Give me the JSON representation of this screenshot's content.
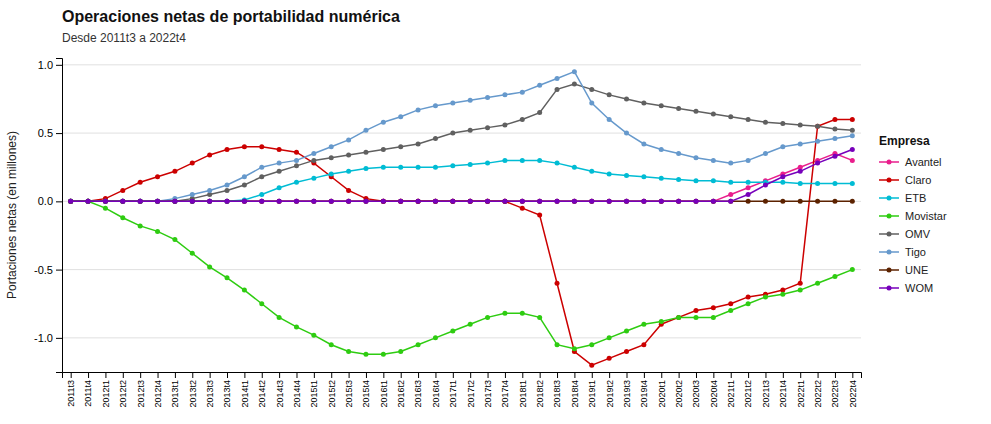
{
  "chart_data": {
    "type": "line",
    "title": "Operaciones netas de portabilidad numérica",
    "subtitle": "Desde 2011t3 a 2022t4",
    "y_label": "Portaciones netas (en millones)",
    "legend_title": "Empresa",
    "legend": "right",
    "grid": true,
    "marker": "circle",
    "ylim": [
      -1.25,
      1.05
    ],
    "yticks": [
      {
        "value": -1.0,
        "label": "-1.0"
      },
      {
        "value": -0.5,
        "label": "-0.5"
      },
      {
        "value": 0.0,
        "label": "0.0"
      },
      {
        "value": 0.5,
        "label": "0.5"
      },
      {
        "value": 1.0,
        "label": "1.0"
      }
    ],
    "categories": [
      "2011t3",
      "2011t4",
      "2012t1",
      "2012t2",
      "2012t3",
      "2012t4",
      "2013t1",
      "2013t2",
      "2013t3",
      "2013t4",
      "2014t1",
      "2014t2",
      "2014t3",
      "2014t4",
      "2015t1",
      "2015t2",
      "2015t3",
      "2015t4",
      "2016t1",
      "2016t2",
      "2016t3",
      "2016t4",
      "2017t1",
      "2017t2",
      "2017t3",
      "2017t4",
      "2018t1",
      "2018t2",
      "2018t3",
      "2018t4",
      "2019t1",
      "2019t2",
      "2019t3",
      "2019t4",
      "2020t1",
      "2020t2",
      "2020t3",
      "2020t4",
      "2021t1",
      "2021t2",
      "2021t3",
      "2021t4",
      "2022t1",
      "2022t2",
      "2022t3",
      "2022t4"
    ],
    "series": [
      {
        "name": "Avantel",
        "color": "#e91e8c",
        "values": [
          0.0,
          0.0,
          0.0,
          0.0,
          0.0,
          0.0,
          0.0,
          0.0,
          0.0,
          0.0,
          0.0,
          0.0,
          0.0,
          0.0,
          0.0,
          0.0,
          0.0,
          0.0,
          0.0,
          0.0,
          0.0,
          0.0,
          0.0,
          0.0,
          0.0,
          0.0,
          0.0,
          0.0,
          0.0,
          0.0,
          0.0,
          0.0,
          0.0,
          0.0,
          0.0,
          0.0,
          0.0,
          0.0,
          0.05,
          0.1,
          0.15,
          0.2,
          0.25,
          0.3,
          0.35,
          0.3
        ]
      },
      {
        "name": "Claro",
        "color": "#cc0000",
        "values": [
          0.0,
          0.0,
          0.02,
          0.08,
          0.14,
          0.18,
          0.22,
          0.28,
          0.34,
          0.38,
          0.4,
          0.4,
          0.38,
          0.36,
          0.28,
          0.18,
          0.08,
          0.02,
          0.0,
          0.0,
          0.0,
          0.0,
          0.0,
          0.0,
          0.0,
          0.0,
          -0.05,
          -0.1,
          -0.6,
          -1.1,
          -1.2,
          -1.15,
          -1.1,
          -1.05,
          -0.9,
          -0.85,
          -0.8,
          -0.78,
          -0.75,
          -0.7,
          -0.68,
          -0.65,
          -0.6,
          0.55,
          0.6,
          0.6
        ]
      },
      {
        "name": "ETB",
        "color": "#00bcd4",
        "values": [
          0.0,
          0.0,
          0.0,
          0.0,
          0.0,
          0.0,
          0.0,
          0.0,
          0.0,
          0.0,
          0.01,
          0.05,
          0.1,
          0.14,
          0.17,
          0.2,
          0.22,
          0.24,
          0.25,
          0.25,
          0.25,
          0.25,
          0.26,
          0.27,
          0.28,
          0.3,
          0.3,
          0.3,
          0.28,
          0.25,
          0.22,
          0.2,
          0.19,
          0.18,
          0.17,
          0.16,
          0.15,
          0.15,
          0.14,
          0.14,
          0.14,
          0.14,
          0.13,
          0.13,
          0.13,
          0.13
        ]
      },
      {
        "name": "Movistar",
        "color": "#2ecc11",
        "values": [
          0.0,
          0.0,
          -0.05,
          -0.12,
          -0.18,
          -0.22,
          -0.28,
          -0.38,
          -0.48,
          -0.56,
          -0.65,
          -0.75,
          -0.85,
          -0.92,
          -0.98,
          -1.05,
          -1.1,
          -1.12,
          -1.12,
          -1.1,
          -1.05,
          -1.0,
          -0.95,
          -0.9,
          -0.85,
          -0.82,
          -0.82,
          -0.85,
          -1.05,
          -1.08,
          -1.05,
          -1.0,
          -0.95,
          -0.9,
          -0.88,
          -0.85,
          -0.85,
          -0.85,
          -0.8,
          -0.75,
          -0.7,
          -0.68,
          -0.65,
          -0.6,
          -0.55,
          -0.5
        ]
      },
      {
        "name": "OMV",
        "color": "#606060",
        "values": [
          0.0,
          0.0,
          0.0,
          0.0,
          0.0,
          0.0,
          0.0,
          0.02,
          0.05,
          0.08,
          0.12,
          0.18,
          0.22,
          0.26,
          0.3,
          0.32,
          0.34,
          0.36,
          0.38,
          0.4,
          0.42,
          0.46,
          0.5,
          0.52,
          0.54,
          0.56,
          0.6,
          0.65,
          0.82,
          0.86,
          0.82,
          0.78,
          0.75,
          0.72,
          0.7,
          0.68,
          0.66,
          0.64,
          0.62,
          0.6,
          0.58,
          0.57,
          0.56,
          0.55,
          0.53,
          0.52
        ]
      },
      {
        "name": "Tigo",
        "color": "#6699cc",
        "values": [
          0.0,
          0.0,
          0.0,
          0.0,
          0.0,
          0.0,
          0.02,
          0.05,
          0.08,
          0.12,
          0.18,
          0.25,
          0.28,
          0.3,
          0.35,
          0.4,
          0.45,
          0.52,
          0.58,
          0.62,
          0.67,
          0.7,
          0.72,
          0.74,
          0.76,
          0.78,
          0.8,
          0.85,
          0.9,
          0.95,
          0.72,
          0.6,
          0.5,
          0.42,
          0.38,
          0.35,
          0.32,
          0.3,
          0.28,
          0.3,
          0.35,
          0.4,
          0.42,
          0.44,
          0.46,
          0.48
        ]
      },
      {
        "name": "UNE",
        "color": "#5c2200",
        "values": [
          0.0,
          0.0,
          0.0,
          0.0,
          0.0,
          0.0,
          0.0,
          0.0,
          0.0,
          0.0,
          0.0,
          0.0,
          0.0,
          0.0,
          0.0,
          0.0,
          0.0,
          0.0,
          0.0,
          0.0,
          0.0,
          0.0,
          0.0,
          0.0,
          0.0,
          0.0,
          0.0,
          0.0,
          0.0,
          0.0,
          0.0,
          0.0,
          0.0,
          0.0,
          0.0,
          0.0,
          0.0,
          0.0,
          0.0,
          0.0,
          0.0,
          0.0,
          0.0,
          0.0,
          0.0,
          0.0
        ]
      },
      {
        "name": "WOM",
        "color": "#7700bb",
        "values": [
          0.0,
          0.0,
          0.0,
          0.0,
          0.0,
          0.0,
          0.0,
          0.0,
          0.0,
          0.0,
          0.0,
          0.0,
          0.0,
          0.0,
          0.0,
          0.0,
          0.0,
          0.0,
          0.0,
          0.0,
          0.0,
          0.0,
          0.0,
          0.0,
          0.0,
          0.0,
          0.0,
          0.0,
          0.0,
          0.0,
          0.0,
          0.0,
          0.0,
          0.0,
          0.0,
          0.0,
          0.0,
          0.0,
          0.0,
          0.05,
          0.12,
          0.18,
          0.22,
          0.28,
          0.33,
          0.38
        ]
      }
    ]
  }
}
